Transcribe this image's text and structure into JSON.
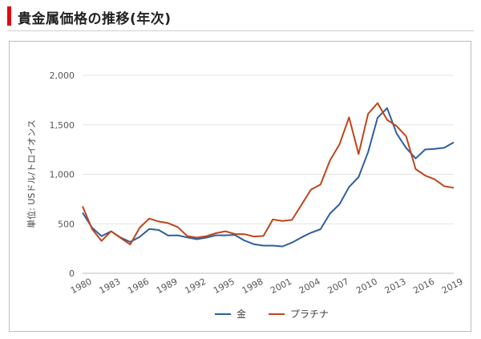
{
  "header": {
    "title": "貴金属価格の推移(年次)",
    "accent_color": "#e60012"
  },
  "chart_data": {
    "type": "line",
    "ylabel": "単位: USドル/トロイオンス",
    "xlabel": "",
    "ylim": [
      0,
      2000
    ],
    "yticks": [
      0,
      500,
      1000,
      1500,
      2000
    ],
    "ytick_labels": [
      "0",
      "500",
      "1,000",
      "1,500",
      "2,000"
    ],
    "xlim": [
      1980,
      2019
    ],
    "xticks": [
      1980,
      1983,
      1986,
      1989,
      1992,
      1995,
      1998,
      2001,
      2004,
      2007,
      2010,
      2013,
      2016,
      2019
    ],
    "xtick_labels": [
      "1980",
      "1983",
      "1986",
      "1989",
      "1992",
      "1995",
      "1998",
      "2001",
      "2004",
      "2007",
      "2010",
      "2013",
      "2016",
      "2019"
    ],
    "grid": true,
    "legend_position": "bottom",
    "x": [
      1980,
      1981,
      1982,
      1983,
      1984,
      1985,
      1986,
      1987,
      1988,
      1989,
      1990,
      1991,
      1992,
      1993,
      1994,
      1995,
      1996,
      1997,
      1998,
      1999,
      2000,
      2001,
      2002,
      2003,
      2004,
      2005,
      2006,
      2007,
      2008,
      2009,
      2010,
      2011,
      2012,
      2013,
      2014,
      2015,
      2016,
      2017,
      2018,
      2019
    ],
    "series": [
      {
        "name": "金",
        "color": "#2e5f9e",
        "values": [
          612,
          460,
          376,
          424,
          361,
          317,
          368,
          447,
          437,
          381,
          384,
          362,
          344,
          360,
          384,
          384,
          388,
          331,
          294,
          279,
          279,
          271,
          310,
          363,
          410,
          445,
          604,
          697,
          872,
          972,
          1225,
          1572,
          1669,
          1411,
          1266,
          1160,
          1251,
          1257,
          1268,
          1323
        ]
      },
      {
        "name": "プラチナ",
        "color": "#c0441a",
        "values": [
          677,
          446,
          327,
          424,
          357,
          291,
          461,
          553,
          523,
          507,
          467,
          376,
          360,
          375,
          405,
          424,
          397,
          395,
          372,
          377,
          544,
          529,
          539,
          692,
          845,
          897,
          1142,
          1303,
          1576,
          1204,
          1611,
          1720,
          1551,
          1487,
          1385,
          1053,
          987,
          949,
          880,
          864
        ]
      }
    ]
  }
}
